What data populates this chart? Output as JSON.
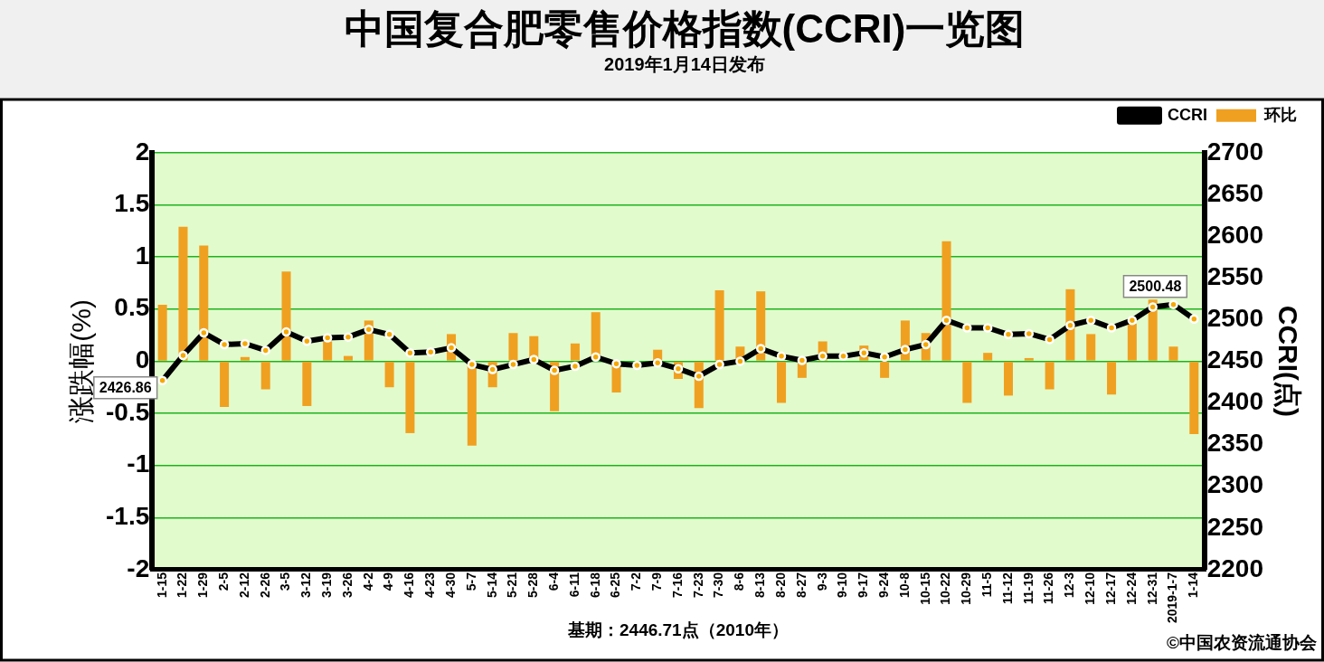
{
  "chart_data": {
    "type": "bar",
    "title": "中国复合肥零售价格指数(CCRI)一览图",
    "subtitle": "2019年1月14日发布",
    "ylabel": "涨跌幅(%)",
    "y2label": "CCRI(点)",
    "categories": [
      "1-15",
      "1-22",
      "1-29",
      "2-5",
      "2-12",
      "2-26",
      "3-5",
      "3-12",
      "3-19",
      "3-26",
      "4-2",
      "4-9",
      "4-16",
      "4-23",
      "4-30",
      "5-7",
      "5-14",
      "5-21",
      "5-28",
      "6-4",
      "6-11",
      "6-18",
      "6-25",
      "7-2",
      "7-9",
      "7-16",
      "7-23",
      "7-30",
      "8-6",
      "8-13",
      "8-20",
      "8-27",
      "9-3",
      "9-10",
      "9-17",
      "9-24",
      "10-8",
      "10-15",
      "10-22",
      "10-29",
      "11-5",
      "11-12",
      "11-19",
      "11-26",
      "12-3",
      "12-10",
      "12-17",
      "12-24",
      "12-31",
      "2019-1-7",
      "1-14"
    ],
    "series": [
      {
        "name": "环比",
        "type": "bar",
        "color": "#f0a020",
        "values": [
          0.54,
          1.29,
          1.11,
          -0.44,
          0.04,
          -0.27,
          0.86,
          -0.43,
          0.19,
          0.05,
          0.39,
          -0.25,
          -0.69,
          0,
          0.26,
          -0.81,
          -0.25,
          0.27,
          0.24,
          -0.48,
          0.17,
          0.47,
          -0.3,
          0,
          0.11,
          -0.17,
          -0.45,
          0.68,
          0.14,
          0.67,
          -0.4,
          -0.16,
          0.19,
          0,
          0.15,
          -0.16,
          0.39,
          0.27,
          1.15,
          -0.4,
          0.08,
          -0.33,
          0.03,
          -0.27,
          0.69,
          0.26,
          -0.32,
          0.36,
          0.59,
          0.14,
          -0.7
        ]
      },
      {
        "name": "CCRI",
        "type": "line",
        "axis": "y2",
        "color": "#000000",
        "marker": "circle",
        "values": [
          2426.86,
          2457,
          2484,
          2470,
          2471,
          2463,
          2485,
          2474,
          2478,
          2479,
          2488,
          2482,
          2460,
          2461,
          2466,
          2446,
          2440,
          2446,
          2452,
          2439,
          2444,
          2455,
          2447,
          2445,
          2448,
          2441,
          2432,
          2446,
          2450,
          2465,
          2456,
          2451,
          2456,
          2456,
          2460,
          2455,
          2464,
          2470,
          2499,
          2490,
          2490,
          2482,
          2483,
          2476,
          2493,
          2499,
          2490,
          2499,
          2515,
          2518,
          2500.48
        ],
        "value_labels": [
          "2426.86",
          null,
          null,
          null,
          null,
          null,
          null,
          null,
          null,
          null,
          null,
          null,
          null,
          null,
          null,
          null,
          null,
          null,
          null,
          null,
          null,
          null,
          null,
          null,
          null,
          null,
          null,
          null,
          null,
          null,
          null,
          null,
          null,
          null,
          null,
          null,
          null,
          null,
          null,
          null,
          null,
          null,
          null,
          null,
          null,
          null,
          null,
          null,
          null,
          null,
          "2500.48"
        ]
      }
    ],
    "ylim": [
      -2,
      2
    ],
    "yticks": [
      2,
      1.5,
      1,
      0.5,
      0,
      -0.5,
      -1,
      -1.5,
      -2
    ],
    "y2lim": [
      2200,
      2700
    ],
    "y2ticks": [
      2200,
      2250,
      2300,
      2350,
      2400,
      2450,
      2500,
      2550,
      2600,
      2650,
      2700
    ],
    "grid": "y",
    "legend": "top right",
    "annotations": [
      "基期：2446.71点（2010年）",
      "©中国农资流通协会"
    ]
  }
}
